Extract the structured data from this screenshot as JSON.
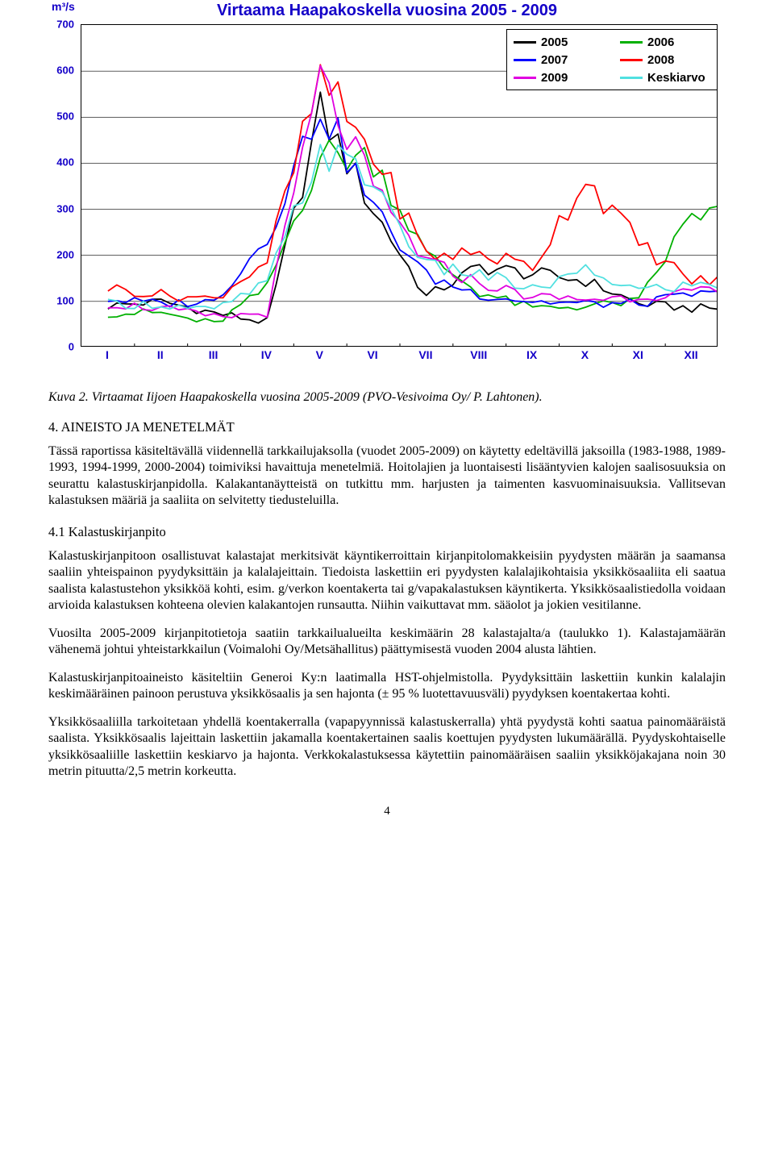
{
  "chart": {
    "type": "line",
    "title_text": "Virtaama Haapakoskella vuosina 2005 - 2009",
    "title_color": "#1400c8",
    "y_unit_label": "m³/s",
    "axis_label_color": "#1400c8",
    "background_color": "#ffffff",
    "border_color": "#000000",
    "grid_color": "#000000",
    "xlim": [
      1,
      12
    ],
    "ylim": [
      0,
      700
    ],
    "ytick_step": 100,
    "x_labels": [
      "I",
      "II",
      "III",
      "IV",
      "V",
      "VI",
      "VII",
      "VIII",
      "IX",
      "X",
      "XI",
      "XII"
    ],
    "line_width": 1.8,
    "series": [
      {
        "name": "2005",
        "color": "#000000",
        "values": [
          90,
          100,
          75,
          55,
          510,
          300,
          110,
          175,
          160,
          145,
          95,
          85
        ]
      },
      {
        "name": "2006",
        "color": "#00b000",
        "values": [
          75,
          75,
          50,
          130,
          420,
          410,
          200,
          120,
          85,
          90,
          100,
          290
        ]
      },
      {
        "name": "2007",
        "color": "#0000ff",
        "values": [
          105,
          95,
          100,
          240,
          530,
          300,
          155,
          115,
          100,
          95,
          95,
          115
        ]
      },
      {
        "name": "2008",
        "color": "#ff0000",
        "values": [
          130,
          115,
          105,
          190,
          580,
          420,
          200,
          205,
          175,
          370,
          225,
          145
        ]
      },
      {
        "name": "2009",
        "color": "#e000e0",
        "values": [
          95,
          85,
          65,
          75,
          580,
          340,
          185,
          140,
          110,
          105,
          110,
          120
        ]
      },
      {
        "name": "Keskiarvo",
        "color": "#50e0e0",
        "values": [
          95,
          93,
          80,
          140,
          430,
          360,
          175,
          160,
          125,
          165,
          125,
          135
        ]
      }
    ],
    "legend": {
      "rows": [
        [
          {
            "label": "2005",
            "color": "#000000"
          },
          {
            "label": "2006",
            "color": "#00b000"
          }
        ],
        [
          {
            "label": "2007",
            "color": "#0000ff"
          },
          {
            "label": "2008",
            "color": "#ff0000"
          }
        ],
        [
          {
            "label": "2009",
            "color": "#e000e0"
          },
          {
            "label": "Keskiarvo",
            "color": "#50e0e0"
          }
        ]
      ]
    }
  },
  "caption": "Kuva 2. Virtaamat Iijoen Haapakoskella vuosina 2005-2009 (PVO-Vesivoima Oy/ P. Lahtonen).",
  "section_heading": "4. AINEISTO JA MENETELMÄT",
  "para1": "Tässä raportissa käsiteltävällä viidennellä tarkkailujaksolla (vuodet 2005-2009) on käytetty edeltävillä jaksoilla (1983-1988, 1989-1993, 1994-1999, 2000-2004) toimiviksi havaittuja menetelmiä. Hoitolajien ja luontaisesti lisääntyvien kalojen saalisosuuksia on seurattu kalastuskirjanpidolla. Kalakantanäytteistä on tutkittu mm. harjusten ja taimenten kasvuominaisuuksia. Vallitsevan kalastuksen määriä ja saaliita on selvitetty tiedusteluilla.",
  "subheading": "4.1 Kalastuskirjanpito",
  "para2": "Kalastuskirjanpitoon osallistuvat kalastajat merkitsivät käyntikerroittain kirjanpitolomakkeisiin pyydysten määrän ja saamansa saaliin yhteispainon pyydyksittäin ja kalalajeittain. Tiedoista laskettiin eri pyydysten kalalajikohtaisia yksikkösaaliita eli saatua saalista kalastustehon yksikköä kohti, esim. g/verkon koentakerta tai g/vapakalastuksen käyntikerta. Yksikkösaalistiedolla voidaan arvioida kalastuksen kohteena olevien kalakantojen runsautta. Niihin vaikuttavat mm. sääolot ja jokien vesitilanne.",
  "para3": "Vuosilta 2005-2009 kirjanpitotietoja saatiin tarkkailualueilta keskimäärin 28 kalastajalta/a (taulukko 1). Kalastajamäärän vähenemä johtui yhteistarkkailun (Voimalohi Oy/Metsähallitus) päättymisestä vuoden 2004 alusta lähtien.",
  "para4": "Kalastuskirjanpitoaineisto käsiteltiin Generoi Ky:n laatimalla HST-ohjelmistolla. Pyydyksittäin laskettiin kunkin kalalajin keskimääräinen painoon perustuva yksikkösaalis ja sen hajonta (± 95 % luotettavuusväli) pyydyksen koentakertaa kohti.",
  "para5": "Yksikkösaaliilla tarkoitetaan yhdellä koentakerralla (vapapyynnissä kalastuskerralla) yhtä pyydystä kohti saatua painomääräistä saalista. Yksikkösaalis lajeittain laskettiin jakamalla koentakertainen saalis koettujen pyydysten lukumäärällä. Pyydyskohtaiselle yksikkösaaliille laskettiin keskiarvo ja hajonta. Verkkokalastuksessa käytettiin painomääräisen saaliin yksikköjakajana noin 30 metrin pituutta/2,5 metrin korkeutta.",
  "page_number": "4"
}
